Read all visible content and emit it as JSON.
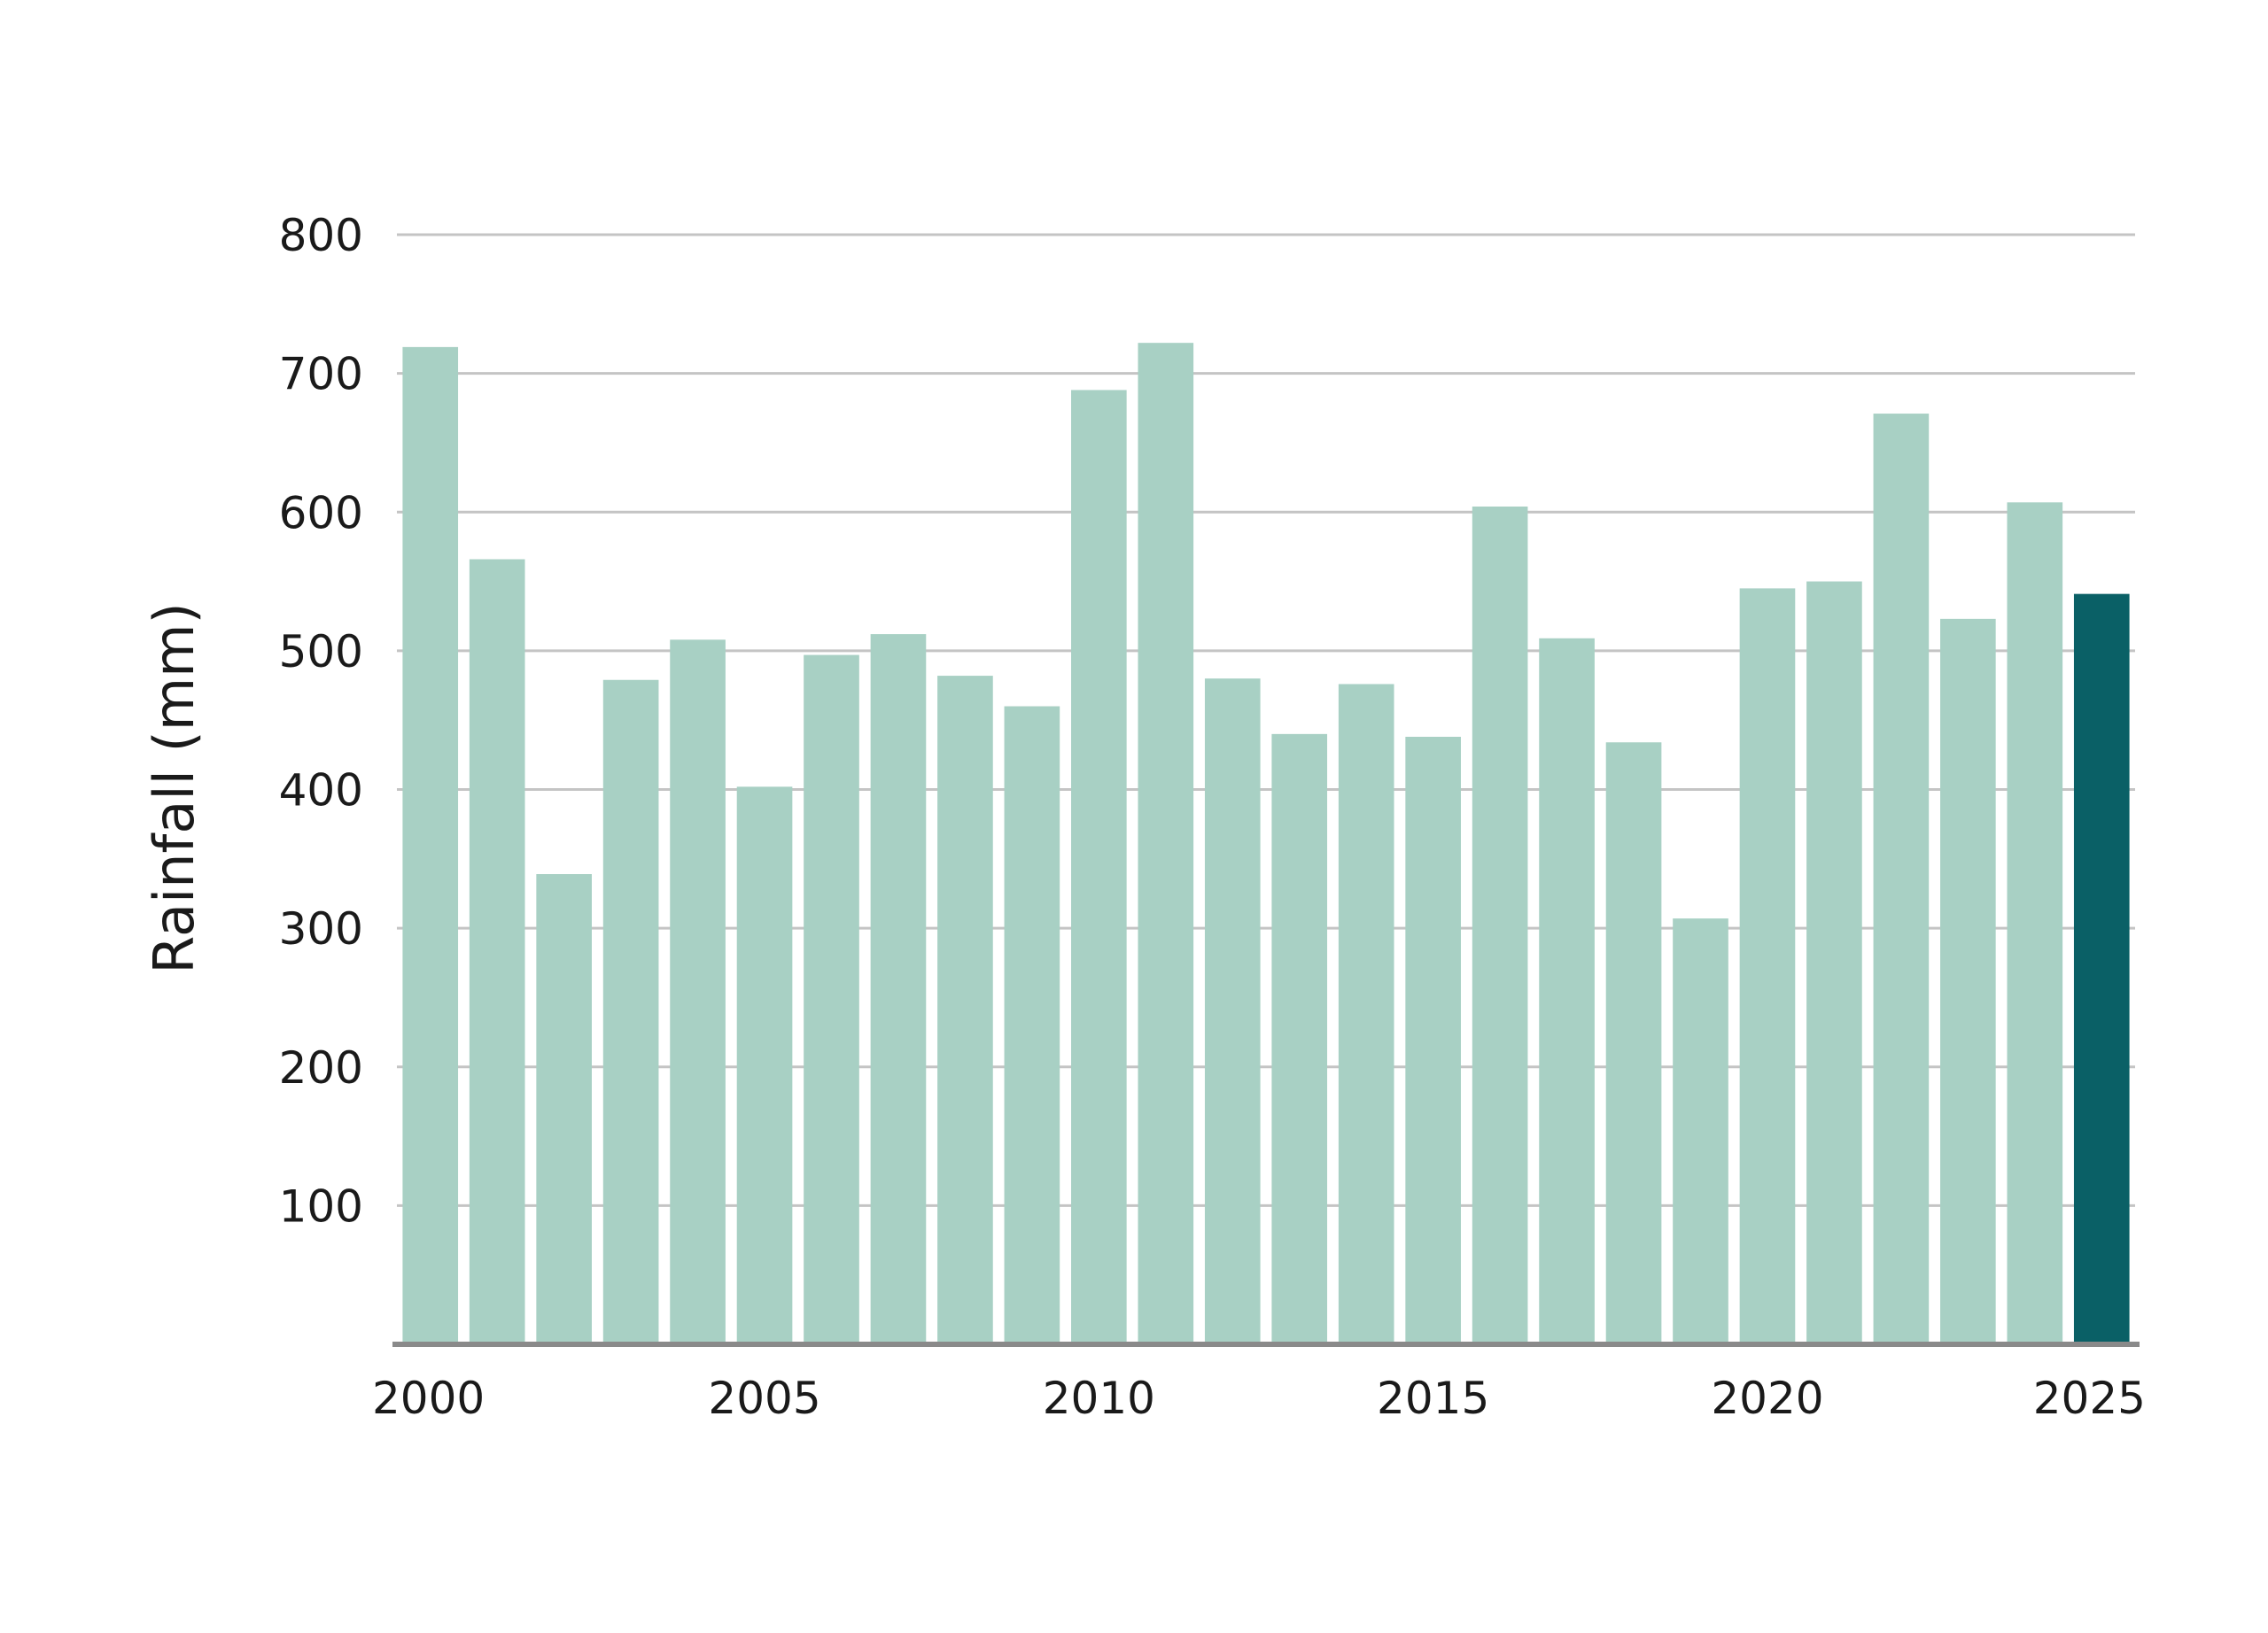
{
  "chart_data": {
    "type": "bar",
    "title": "",
    "xlabel": "",
    "ylabel": "Rainfall (mm)",
    "ylim": [
      0,
      800
    ],
    "y_ticks": [
      100,
      200,
      300,
      400,
      500,
      600,
      700,
      800
    ],
    "x_tick_labels": [
      "2000",
      "2005",
      "2010",
      "2015",
      "2020",
      "2025"
    ],
    "categories": [
      2000,
      2001,
      2002,
      2003,
      2004,
      2005,
      2006,
      2007,
      2008,
      2009,
      2010,
      2011,
      2012,
      2013,
      2014,
      2015,
      2016,
      2017,
      2018,
      2019,
      2020,
      2021,
      2022,
      2023,
      2024,
      2025
    ],
    "values": [
      719,
      566,
      339,
      479,
      508,
      402,
      497,
      512,
      482,
      460,
      688,
      722,
      480,
      440,
      476,
      438,
      604,
      509,
      434,
      307,
      545,
      550,
      671,
      523,
      607,
      541
    ],
    "highlight_category": 2025,
    "grid": true,
    "colors": {
      "bar": "#a8d0c4",
      "highlight": "#0a6066",
      "grid": "#c4c4c4",
      "baseline": "#8a8a8a"
    }
  }
}
